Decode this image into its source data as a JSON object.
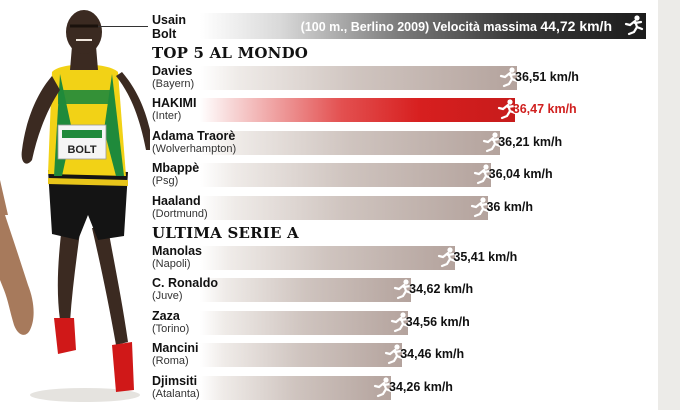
{
  "header": {
    "name_line1": "Usain",
    "name_line2": "Bolt",
    "context": "(100 m., Berlino 2009) Velocità massima",
    "speed_text": "44,72 km/h"
  },
  "colors": {
    "bolt_bar": "#1c1c1c",
    "bar": "#b4a39d",
    "highlight": "#d71f1f",
    "highlight_text": "#d0201f"
  },
  "chart_data": [
    {
      "type": "bar",
      "title": "TOP 5 AL MONDO",
      "unit": "km/h",
      "categories": [
        "Davies",
        "HAKIMI",
        "Adama Traorè",
        "Mbappè",
        "Haaland"
      ],
      "teams": [
        "(Bayern)",
        "(Inter)",
        "(Wolverhampton)",
        "(Psg)",
        "(Dortmund)"
      ],
      "values": [
        36.51,
        36.47,
        36.21,
        36.04,
        36
      ],
      "labels": [
        "36,51 km/h",
        "36,47 km/h",
        "36,21 km/h",
        "36,04 km/h",
        "36 km/h"
      ],
      "highlight_index": 1
    },
    {
      "type": "bar",
      "title": "ULTIMA SERIE A",
      "unit": "km/h",
      "categories": [
        "Manolas",
        "C. Ronaldo",
        "Zaza",
        "Mancini",
        "Djimsiti"
      ],
      "teams": [
        "(Napoli)",
        "(Juve)",
        "(Torino)",
        "(Roma)",
        "(Atalanta)"
      ],
      "values": [
        35.41,
        34.62,
        34.56,
        34.46,
        34.26
      ],
      "labels": [
        "35,41 km/h",
        "34,62 km/h",
        "34,56 km/h",
        "34,46 km/h",
        "34,26 km/h"
      ],
      "highlight_index": -1
    }
  ]
}
